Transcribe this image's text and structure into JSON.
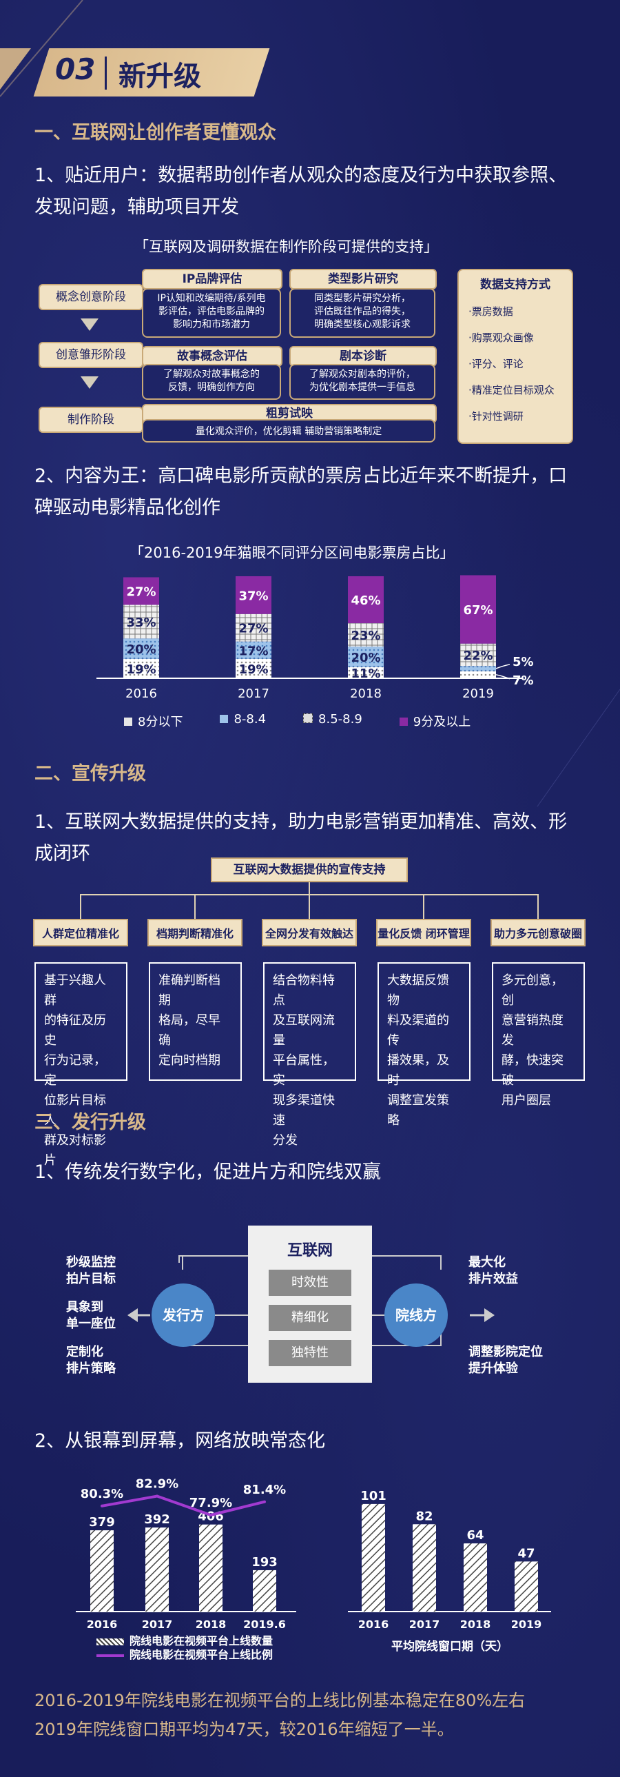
{
  "banner": {
    "number": "03",
    "title": "新升级"
  },
  "sec1": {
    "heading": "一、互联网让创作者更懂观众",
    "p1": [
      "1、贴近用户：数据帮助创作者从观众的态度及行为中获取参照、",
      "发现问题，辅助项目开发"
    ],
    "diagram_title": "「互联网及调研数据在制作阶段可提供的支持」",
    "stages": [
      "概念创意阶段",
      "创意雏形阶段",
      "制作阶段"
    ],
    "ip": {
      "title": "IP品牌评估",
      "body": [
        "IP认知和改编期待/系列电",
        "影评估，评估电影品牌的",
        "影响力和市场潜力"
      ]
    },
    "genre": {
      "title": "类型影片研究",
      "body": [
        "同类型影片研究分析，",
        "评估既往作品的得失，",
        "明确类型核心观影诉求"
      ]
    },
    "story": {
      "title": "故事概念评估",
      "body": [
        "了解观众对故事概念的",
        "反馈，明确创作方向"
      ]
    },
    "script": {
      "title": "剧本诊断",
      "body": [
        "了解观众对剧本的评价，",
        "为优化剧本提供一手信息"
      ]
    },
    "rough": {
      "title": "粗剪试映",
      "body": "量化观众评价，优化剪辑 辅助营销策略制定"
    },
    "support": {
      "title": "数据支持方式",
      "items": [
        "·票房数据",
        "·购票观众画像",
        "·评分、评论",
        "·精准定位目标观众",
        "·针对性调研"
      ]
    },
    "p2": [
      "2、内容为王：高口碑电影所贡献的票房占比近年来不断提升，口",
      "碑驱动电影精品化创作"
    ]
  },
  "chart_data": [
    {
      "type": "bar",
      "stacked": true,
      "title": "「2016-2019年猫眼不同评分区间电影票房占比」",
      "categories": [
        "2016",
        "2017",
        "2018",
        "2019"
      ],
      "series": [
        {
          "name": "8分以下",
          "values": [
            19,
            19,
            11,
            7
          ],
          "labels": [
            "19%",
            "19%",
            "11%",
            "7%"
          ]
        },
        {
          "name": "8-8.4",
          "values": [
            20,
            17,
            20,
            5
          ],
          "labels": [
            "20%",
            "17%",
            "20%",
            "5%"
          ]
        },
        {
          "name": "8.5-8.9",
          "values": [
            33,
            27,
            23,
            22
          ],
          "labels": [
            "33%",
            "27%",
            "23%",
            "22%"
          ]
        },
        {
          "name": "9分及以上",
          "values": [
            27,
            37,
            46,
            67
          ],
          "labels": [
            "27%",
            "37%",
            "46%",
            "67%"
          ]
        }
      ],
      "colors": {
        "8分以下": "#e6e6e6",
        "8-8.4": "#9ec3ea",
        "8.5-8.9": "#e6e6e6",
        "9分及以上": "#8a2aa3"
      },
      "legend_position": "bottom"
    },
    {
      "type": "bar",
      "categories": [
        "2016",
        "2017",
        "2018",
        "2019.6"
      ],
      "series": [
        {
          "name": "院线电影在视频平台上线数量",
          "values": [
            379,
            392,
            406,
            193
          ]
        },
        {
          "name": "院线电影在视频平台上线比例",
          "values": [
            80.3,
            82.9,
            77.9,
            81.4
          ],
          "labels": [
            "80.3%",
            "82.9%",
            "77.9%",
            "81.4%"
          ],
          "kind": "line",
          "color": "#a23ad0"
        }
      ],
      "legend_position": "bottom"
    },
    {
      "type": "bar",
      "categories": [
        "2016",
        "2017",
        "2018",
        "2019"
      ],
      "series": [
        {
          "name": "平均院线窗口期（天）",
          "values": [
            101,
            82,
            64,
            47
          ]
        }
      ],
      "xlabel": "平均院线窗口期（天）"
    }
  ],
  "sec2": {
    "heading": "二、宣传升级",
    "p1": [
      "1、互联网大数据提供的支持，助力电影营销更加精准、高效、形",
      "成闭环"
    ],
    "root": "互联网大数据提供的宣传支持",
    "tags": [
      "人群定位精准化",
      "档期判断精准化",
      "全网分发有效触达",
      "量化反馈 闭环管理",
      "助力多元创意破圈"
    ],
    "boxes": [
      [
        "基于兴趣人群",
        "的特征及历史",
        "行为记录，定",
        "位影片目标人",
        "群及对标影片"
      ],
      [
        "准确判断档期",
        "格局，尽早确",
        "定向时档期"
      ],
      [
        "结合物料特点",
        "及互联网流量",
        "平台属性，实",
        "现多渠道快速",
        "分发"
      ],
      [
        "大数据反馈物",
        "料及渠道的传",
        "播效果，及时",
        "调整宣发策略"
      ],
      [
        "多元创意，创",
        "意营销热度发",
        "酵，快速突破",
        "用户圈层"
      ]
    ]
  },
  "sec3": {
    "heading": "三、发行升级",
    "p1": "1、传统发行数字化，促进片方和院线双赢",
    "center_title": "互联网",
    "pills": [
      "时效性",
      "精细化",
      "独特性"
    ],
    "left_circle": "发行方",
    "right_circle": "院线方",
    "left_texts": [
      [
        "秒级监控",
        "拍片目标"
      ],
      [
        "具象到",
        "单一座位"
      ],
      [
        "定制化",
        "排片策略"
      ]
    ],
    "right_texts": [
      [
        "最大化",
        "排片效益"
      ],
      [
        "调整影院定位",
        "提升体验"
      ]
    ],
    "p2": "2、从银幕到屏幕，网络放映常态化",
    "footer": [
      "2016-2019年院线电影在视频平台的上线比例基本稳定在80%左右",
      "2019年院线窗口期平均为47天，较2016年缩短了一半。"
    ]
  }
}
